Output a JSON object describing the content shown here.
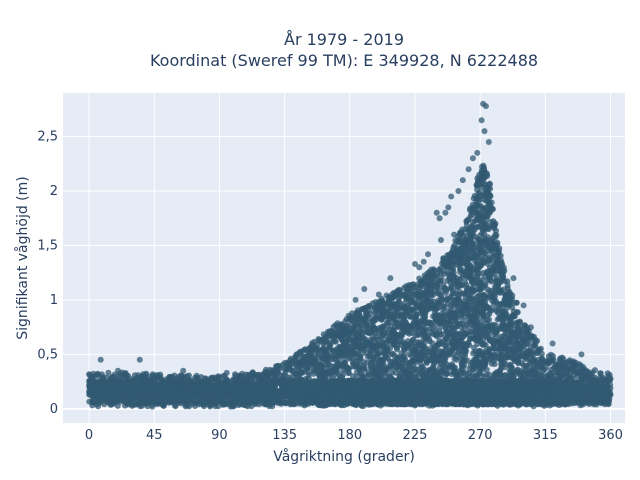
{
  "chart_data": {
    "type": "scatter",
    "title": "År 1979 - 2019",
    "subtitle": "Koordinat (Sweref 99 TM): E 349928, N 6222488",
    "xlabel": "Vågriktning (grader)",
    "ylabel": "Signifikant våghöjd (m)",
    "xlim": [
      -18,
      370
    ],
    "ylim": [
      -0.13,
      2.9
    ],
    "x_ticks": [
      0,
      45,
      90,
      135,
      180,
      225,
      270,
      315,
      360
    ],
    "x_tick_labels": [
      "0",
      "45",
      "90",
      "135",
      "180",
      "225",
      "270",
      "315",
      "360"
    ],
    "y_ticks": [
      0,
      0.5,
      1,
      1.5,
      2,
      2.5
    ],
    "y_tick_labels": [
      "0",
      "0,5",
      "1",
      "1,5",
      "2",
      "2,5"
    ],
    "grid": true,
    "marker_color": "#325971",
    "envelope": {
      "x": [
        0,
        20,
        45,
        90,
        120,
        135,
        150,
        165,
        180,
        195,
        210,
        225,
        240,
        250,
        258,
        264,
        268,
        272,
        276,
        280,
        285,
        290,
        300,
        315,
        330,
        345,
        360
      ],
      "y": [
        0.3,
        0.32,
        0.3,
        0.28,
        0.33,
        0.4,
        0.55,
        0.7,
        0.85,
        0.95,
        1.05,
        1.15,
        1.3,
        1.45,
        1.65,
        1.85,
        2.1,
        2.25,
        2.1,
        1.7,
        1.35,
        1.1,
        0.8,
        0.5,
        0.45,
        0.35,
        0.3
      ]
    },
    "outliers": [
      {
        "x": 272,
        "y": 2.8
      },
      {
        "x": 274,
        "y": 2.78
      },
      {
        "x": 271,
        "y": 2.65
      },
      {
        "x": 273,
        "y": 2.55
      },
      {
        "x": 276,
        "y": 2.45
      },
      {
        "x": 268,
        "y": 2.35
      },
      {
        "x": 265,
        "y": 2.3
      },
      {
        "x": 262,
        "y": 2.2
      },
      {
        "x": 258,
        "y": 2.1
      },
      {
        "x": 255,
        "y": 2.0
      },
      {
        "x": 250,
        "y": 1.95
      },
      {
        "x": 248,
        "y": 1.85
      },
      {
        "x": 246,
        "y": 1.8
      },
      {
        "x": 240,
        "y": 1.8
      },
      {
        "x": 242,
        "y": 1.75
      },
      {
        "x": 252,
        "y": 1.6
      },
      {
        "x": 243,
        "y": 1.55
      },
      {
        "x": 234,
        "y": 1.42
      },
      {
        "x": 231,
        "y": 1.35
      },
      {
        "x": 225,
        "y": 1.33
      },
      {
        "x": 228,
        "y": 1.3
      },
      {
        "x": 208,
        "y": 1.2
      },
      {
        "x": 190,
        "y": 1.1
      },
      {
        "x": 200,
        "y": 1.05
      },
      {
        "x": 184,
        "y": 1.0
      },
      {
        "x": 293,
        "y": 1.2
      },
      {
        "x": 300,
        "y": 0.95
      },
      {
        "x": 305,
        "y": 0.75
      },
      {
        "x": 320,
        "y": 0.6
      },
      {
        "x": 340,
        "y": 0.5
      },
      {
        "x": 8,
        "y": 0.45
      },
      {
        "x": 35,
        "y": 0.45
      },
      {
        "x": 20,
        "y": 0.35
      },
      {
        "x": 65,
        "y": 0.35
      },
      {
        "x": 95,
        "y": 0.33
      },
      {
        "x": 150,
        "y": 0.45
      }
    ]
  }
}
